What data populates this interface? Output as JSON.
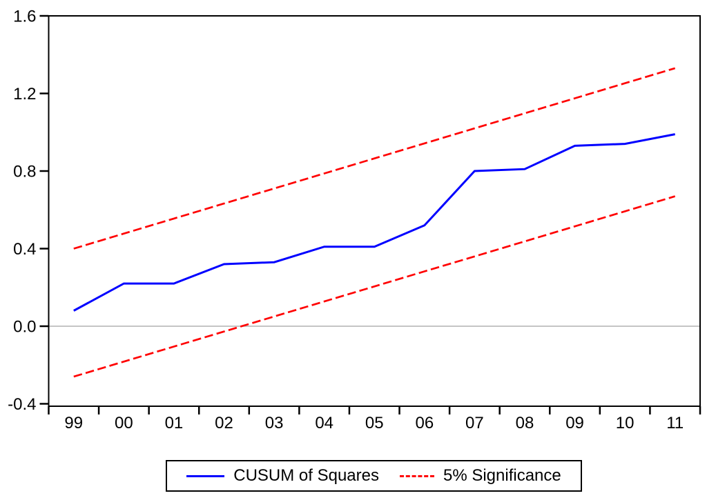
{
  "chart_data": {
    "type": "line",
    "title": "",
    "xlabel": "",
    "ylabel": "",
    "categories": [
      "99",
      "00",
      "01",
      "02",
      "03",
      "04",
      "05",
      "06",
      "07",
      "08",
      "09",
      "10",
      "11"
    ],
    "series": [
      {
        "name": "CUSUM of Squares",
        "color": "#0000ff",
        "style": "solid",
        "width": 3,
        "values": [
          0.08,
          0.22,
          0.22,
          0.32,
          0.33,
          0.41,
          0.41,
          0.52,
          0.8,
          0.81,
          0.93,
          0.94,
          0.99
        ]
      },
      {
        "name": "5% Significance (upper bound)",
        "color": "#ff0000",
        "style": "dashed",
        "width": 2.7,
        "values": [
          0.4,
          0.4775,
          0.555,
          0.6325,
          0.71,
          0.7875,
          0.865,
          0.9425,
          1.02,
          1.0975,
          1.175,
          1.2525,
          1.33
        ]
      },
      {
        "name": "5% Significance (lower bound)",
        "color": "#ff0000",
        "style": "dashed",
        "width": 2.7,
        "values": [
          -0.26,
          -0.1825,
          -0.105,
          -0.0275,
          0.05,
          0.1275,
          0.205,
          0.2825,
          0.36,
          0.4375,
          0.515,
          0.5925,
          0.67
        ]
      }
    ],
    "y_ticks": [
      -0.4,
      0.0,
      0.4,
      0.8,
      1.2,
      1.6
    ],
    "y_tick_labels": [
      "-0.4",
      "0.0",
      "0.4",
      "0.8",
      "1.2",
      "1.6"
    ],
    "ylim": [
      -0.4,
      1.6
    ],
    "zero_line": true,
    "zero_line_color": "#b0b0b0",
    "grid": false,
    "frame_color": "#000000",
    "legend_position": "bottom"
  },
  "legend": {
    "items": [
      {
        "label": "CUSUM of Squares",
        "color": "#0000ff",
        "style": "solid"
      },
      {
        "label": "5% Significance",
        "color": "#ff0000",
        "style": "dashed"
      }
    ]
  }
}
